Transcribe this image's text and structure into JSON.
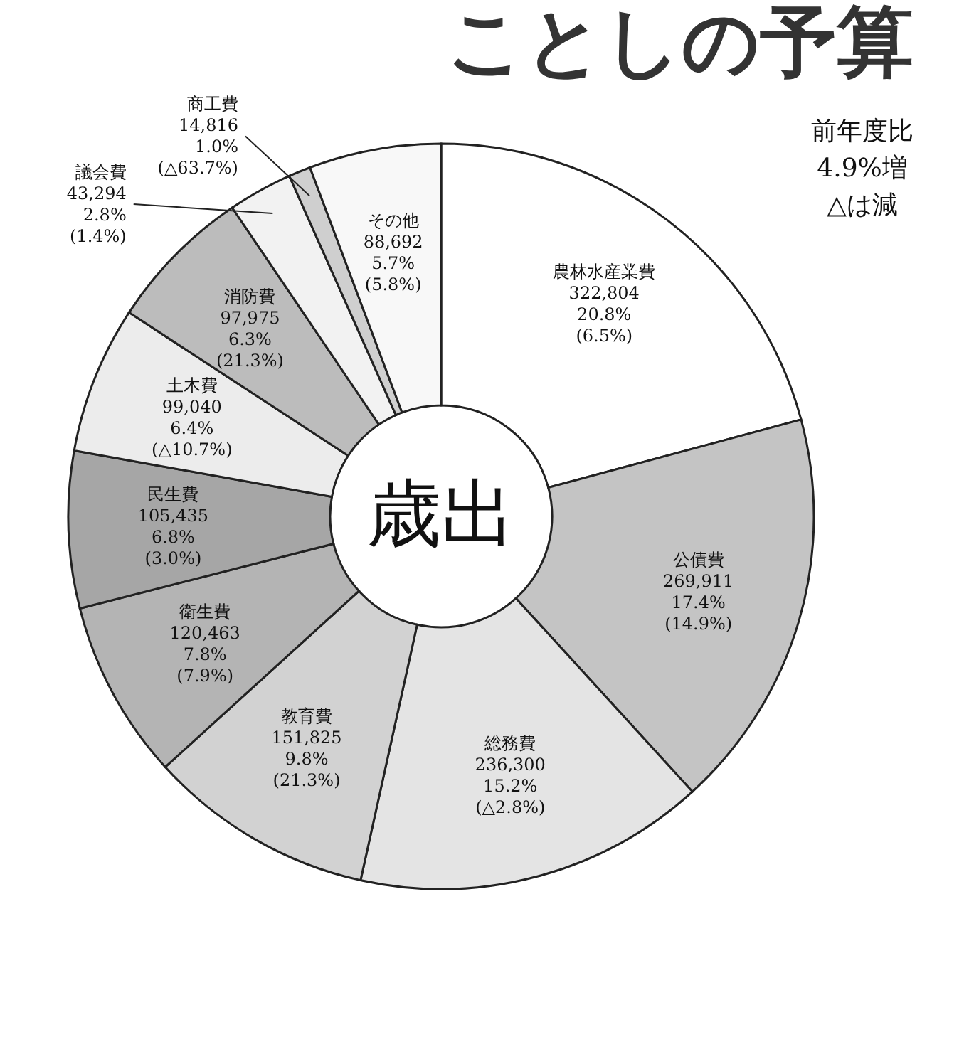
{
  "chart_data": {
    "type": "donut",
    "title": "ことしの予算",
    "categories": [
      "農林水産業費",
      "公債費",
      "総務費",
      "教育費",
      "衛生費",
      "民生費",
      "土木費",
      "消防費",
      "議会費",
      "商工費",
      "その他"
    ],
    "values": [
      322804,
      269911,
      236300,
      151825,
      120463,
      105435,
      99040,
      97975,
      43294,
      14816,
      88692
    ],
    "value_labels": [
      "322,804\n20.8%\n(6.5%)",
      "269,911\n17.4%\n(14.9%)",
      "236,300\n15.2%\n(△2.8%)",
      "151,825\n9.8%\n(21.3%)",
      "120,463\n7.8%\n(7.9%)",
      "105,435\n6.8%\n(3.0%)",
      "99,040\n6.4%\n(△10.7%)",
      "97,975\n6.3%\n(21.3%)",
      "43,294\n2.8%\n(1.4%)",
      "14,816\n1.0%\n(△63.7%)",
      "88,692\n5.7%\n(5.8%)"
    ],
    "colors": [
      "#ffffff",
      "#c4c4c4",
      "#e4e4e4",
      "#d2d2d2",
      "#b4b4b4",
      "#a6a6a6",
      "#ececec",
      "#bcbcbc",
      "#f2f2f2",
      "#cfcfcf",
      "#f8f8f8"
    ],
    "annotations": [
      "歳出",
      "前年度比\n4.9%増\n△は減"
    ]
  }
}
